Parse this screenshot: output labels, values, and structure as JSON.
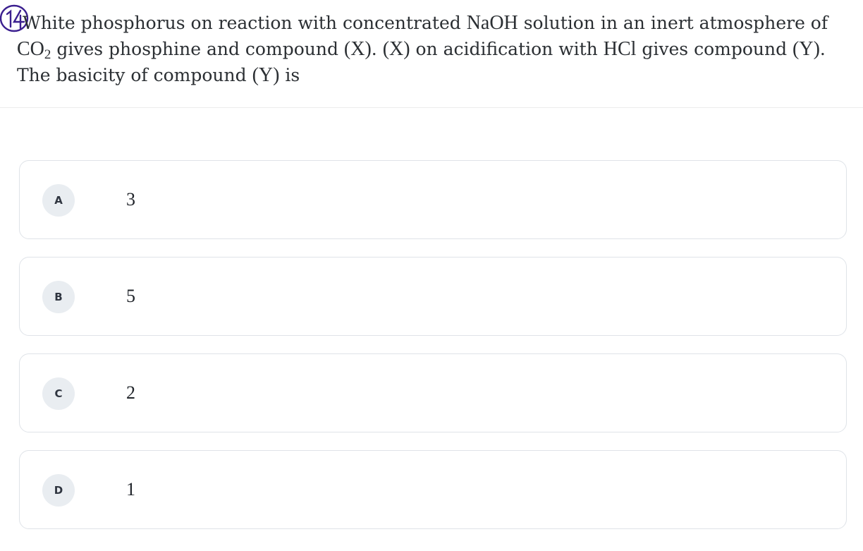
{
  "question": {
    "number_mark": "14",
    "part1": "hite phosphorus on reaction with concentrated ",
    "naoh": "NaOH",
    "part2": " solution in an inert atmosphere of ",
    "co": "CO",
    "co_sub": "2",
    "part3": " gives phosphine and compound ",
    "x1": "(X)",
    "part4": ". ",
    "x2": "(X)",
    "part5": " on acidification with ",
    "hcl": "HCl",
    "part6": " gives compound ",
    "y1": "(Y)",
    "part7": ". The basicity of compound ",
    "y2": "(Y)",
    "part8": " is",
    "w": "W"
  },
  "options": [
    {
      "letter": "A",
      "value": "3"
    },
    {
      "letter": "B",
      "value": "5"
    },
    {
      "letter": "C",
      "value": "2"
    },
    {
      "letter": "D",
      "value": "1"
    }
  ],
  "colors": {
    "ink_annotation": "#3b1f8f",
    "badge_bg": "#e9edf1",
    "border": "#dfe3e8"
  }
}
